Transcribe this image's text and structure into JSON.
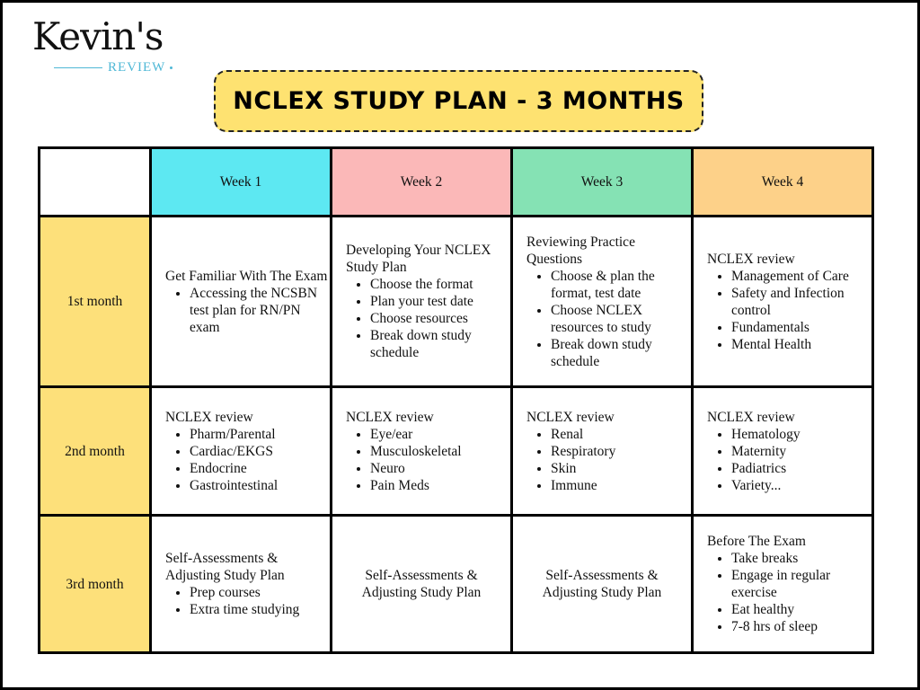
{
  "logo": {
    "main": "Kevin's",
    "sub": "REVIEW"
  },
  "title": "NCLEX STUDY PLAN - 3 MONTHS",
  "colors": {
    "week1": "#5de8f2",
    "week2": "#fbb8b8",
    "week3": "#85e2b4",
    "week4": "#fdd189",
    "month": "#fde07a",
    "title_bg": "#fee271"
  },
  "weeks": [
    "Week 1",
    "Week 2",
    "Week 3",
    "Week 4"
  ],
  "rows": [
    {
      "month": "1st month",
      "cells": [
        {
          "heading": "Get Familiar With The Exam",
          "items": [
            "Accessing the NCSBN test plan for RN/PN exam"
          ]
        },
        {
          "heading": "Developing Your NCLEX Study Plan",
          "items": [
            "Choose the format",
            "Plan your test date",
            "Choose resources",
            "Break down study schedule"
          ]
        },
        {
          "heading": "Reviewing Practice Questions",
          "items": [
            "Choose & plan the format, test date",
            "Choose NCLEX resources to study",
            "Break down study schedule"
          ]
        },
        {
          "heading": "NCLEX review",
          "items": [
            "Management of Care",
            "Safety and Infection control",
            "Fundamentals",
            "Mental Health"
          ]
        }
      ]
    },
    {
      "month": "2nd month",
      "cells": [
        {
          "heading": "NCLEX review",
          "items": [
            "Pharm/Parental",
            "Cardiac/EKGS",
            "Endocrine",
            "Gastrointestinal"
          ]
        },
        {
          "heading": "NCLEX review",
          "items": [
            "Eye/ear",
            "Musculoskeletal",
            "Neuro",
            "Pain Meds"
          ]
        },
        {
          "heading": "NCLEX review",
          "items": [
            "Renal",
            "Respiratory",
            "Skin",
            "Immune"
          ]
        },
        {
          "heading": "NCLEX review",
          "items": [
            "Hematology",
            "Maternity",
            "Padiatrics",
            "Variety..."
          ]
        }
      ]
    },
    {
      "month": "3rd month",
      "cells": [
        {
          "heading": "Self-Assessments & Adjusting Study Plan",
          "items": [
            "Prep courses",
            "Extra time studying"
          ]
        },
        {
          "heading": "Self-Assessments & Adjusting Study Plan",
          "items": []
        },
        {
          "heading": "Self-Assessments & Adjusting Study Plan",
          "items": []
        },
        {
          "heading": "Before The Exam",
          "items": [
            "Take breaks",
            "Engage in regular exercise",
            "Eat healthy",
            "7-8 hrs of sleep"
          ]
        }
      ]
    }
  ]
}
